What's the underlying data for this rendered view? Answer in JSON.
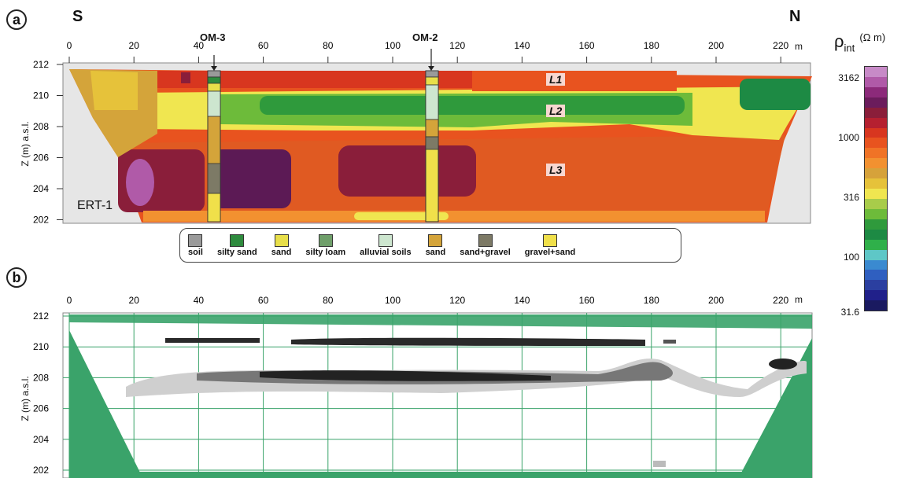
{
  "panel_a": {
    "label": "a",
    "south": "S",
    "north": "N",
    "x_ticks": [
      "0",
      "20",
      "40",
      "60",
      "80",
      "100",
      "120",
      "140",
      "160",
      "180",
      "200",
      "220"
    ],
    "x_unit": "m",
    "y_ticks": [
      "212",
      "210",
      "208",
      "206",
      "204",
      "202"
    ],
    "y_axis_label": "Z (m)  a.s.l.",
    "profile_name": "ERT-1",
    "layers": [
      "L1",
      "L2",
      "L3"
    ],
    "wells": [
      "OM-3",
      "OM-2"
    ]
  },
  "legend": {
    "items": [
      {
        "label": "soil",
        "color": "#9a9a9a"
      },
      {
        "label": "silty sand",
        "color": "#2e8b3e"
      },
      {
        "label": "sand",
        "color": "#e8df4a"
      },
      {
        "label": "silty loam",
        "color": "#6f9f6a"
      },
      {
        "label": "alluvial soils",
        "color": "#cde6cf"
      },
      {
        "label": "sand",
        "color": "#d4a43a"
      },
      {
        "label": "sand+gravel",
        "color": "#7d7a66"
      },
      {
        "label": "gravel+sand",
        "color": "#f0e04a"
      }
    ]
  },
  "colorbar": {
    "title": "ρ",
    "title_sub": "int",
    "unit": "(Ω m)",
    "labels": [
      "3162",
      "1000",
      "316",
      "100",
      "31.6"
    ],
    "colors": [
      "#c78ac7",
      "#b05aa8",
      "#8c2a7a",
      "#6b1c5c",
      "#8a1e3a",
      "#b52030",
      "#d8361f",
      "#e8531f",
      "#f07326",
      "#f29130",
      "#d6a23a",
      "#e6c23a",
      "#f0e650",
      "#a8cc4a",
      "#6dbb3a",
      "#2f9a3c",
      "#1d8a44",
      "#2fb04a",
      "#5ec7c7",
      "#3a8ad0",
      "#2f5fc0",
      "#2b3fa0",
      "#20208a",
      "#1a1a60"
    ]
  },
  "panel_b": {
    "label": "b",
    "x_ticks": [
      "0",
      "20",
      "40",
      "60",
      "80",
      "100",
      "120",
      "140",
      "160",
      "180",
      "200",
      "220"
    ],
    "x_unit": "m",
    "y_ticks": [
      "212",
      "210",
      "208",
      "206",
      "204",
      "202"
    ],
    "y_axis_label": "Z (m)  a.s.l."
  }
}
